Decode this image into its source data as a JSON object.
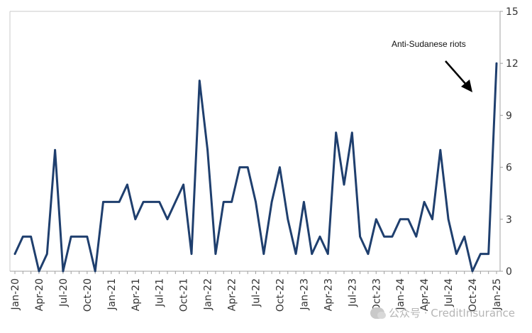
{
  "chart_data": {
    "type": "line",
    "title": "",
    "xlabel": "",
    "ylabel": "",
    "ylim": [
      0,
      15
    ],
    "yticks": [
      "15",
      "12",
      "9",
      "6",
      "3",
      "0"
    ],
    "xtick_labels": [
      "Jan-20",
      "Apr-20",
      "Jul-20",
      "Oct-20",
      "Jan-21",
      "Apr-21",
      "Jul-21",
      "Oct-21",
      "Jan-22",
      "Apr-22",
      "Jul-22",
      "Oct-22",
      "Jan-23",
      "Apr-23",
      "Jul-23",
      "Oct-23",
      "Jan-24",
      "Apr-24",
      "Jul-24",
      "Oct-24",
      "Jan-25"
    ],
    "grid": false,
    "line_color": "#1f3f6e",
    "x": [
      "Jan-20",
      "Feb-20",
      "Mar-20",
      "Apr-20",
      "May-20",
      "Jun-20",
      "Jul-20",
      "Aug-20",
      "Sep-20",
      "Oct-20",
      "Nov-20",
      "Dec-20",
      "Jan-21",
      "Feb-21",
      "Mar-21",
      "Apr-21",
      "May-21",
      "Jun-21",
      "Jul-21",
      "Aug-21",
      "Sep-21",
      "Oct-21",
      "Nov-21",
      "Dec-21",
      "Jan-22",
      "Feb-22",
      "Mar-22",
      "Apr-22",
      "May-22",
      "Jun-22",
      "Jul-22",
      "Aug-22",
      "Sep-22",
      "Oct-22",
      "Nov-22",
      "Dec-22",
      "Jan-23",
      "Feb-23",
      "Mar-23",
      "Apr-23",
      "May-23",
      "Jun-23",
      "Jul-23",
      "Aug-23",
      "Sep-23",
      "Oct-23",
      "Nov-23",
      "Dec-23",
      "Jan-24",
      "Feb-24",
      "Mar-24",
      "Apr-24",
      "May-24",
      "Jun-24",
      "Jul-24",
      "Aug-24",
      "Sep-24",
      "Oct-24",
      "Nov-24",
      "Dec-24",
      "Jan-25"
    ],
    "values": [
      1,
      2,
      2,
      0,
      1,
      7,
      0,
      2,
      2,
      2,
      0,
      4,
      4,
      4,
      5,
      3,
      4,
      4,
      4,
      3,
      4,
      5,
      1,
      11,
      7,
      1,
      4,
      4,
      6,
      6,
      4,
      1,
      4,
      6,
      3,
      1,
      4,
      1,
      2,
      1,
      8,
      5,
      8,
      2,
      1,
      3,
      2,
      2,
      3,
      3,
      2,
      4,
      3,
      7,
      3,
      1,
      2,
      0,
      1,
      1,
      12
    ],
    "annotation": {
      "text": "Anti-Sudanese riots"
    }
  },
  "watermark": {
    "text": "公众号 · CreditInsurance"
  }
}
